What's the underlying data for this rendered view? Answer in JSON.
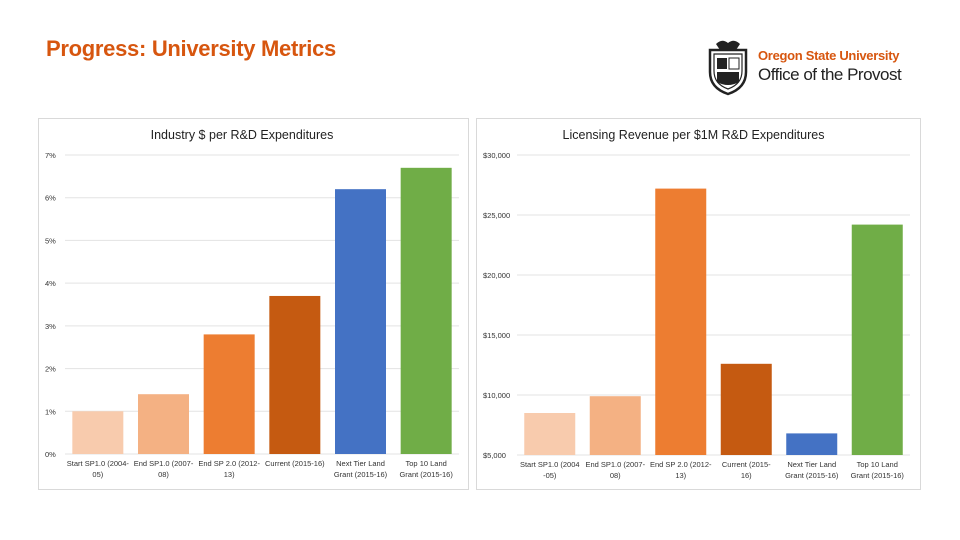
{
  "page": {
    "title": "Progress: University Metrics"
  },
  "logo": {
    "line1": "Oregon State University",
    "line2": "Office of the Provost",
    "icon": "osu-seal-icon"
  },
  "colors": {
    "title": "#d7560f",
    "bars": [
      "#f8cbad",
      "#f4b183",
      "#ed7d31",
      "#c55a11",
      "#4472c4",
      "#70ad47"
    ]
  },
  "chart_data": [
    {
      "type": "bar",
      "title": "Industry $ per R&D Expenditures",
      "categories": [
        [
          "Start SP1.0 (2004-",
          "05)"
        ],
        [
          "End SP1.0 (2007-",
          "08)"
        ],
        [
          "End SP 2.0 (2012-",
          "13)"
        ],
        [
          "Current (2015-16)",
          ""
        ],
        [
          "Next Tier Land",
          "Grant (2015-16)"
        ],
        [
          "Top 10 Land",
          "Grant (2015-16)"
        ]
      ],
      "values": [
        1.0,
        1.4,
        2.8,
        3.7,
        6.2,
        6.7
      ],
      "ylim": [
        0,
        7
      ],
      "yticks": [
        0,
        1,
        2,
        3,
        4,
        5,
        6,
        7
      ],
      "ytick_labels": [
        "0%",
        "1%",
        "2%",
        "3%",
        "4%",
        "5%",
        "6%",
        "7%"
      ],
      "grid": true
    },
    {
      "type": "bar",
      "title": "Licensing Revenue per $1M R&D Expenditures",
      "categories": [
        [
          "Start SP1.0 (2004",
          "-05)"
        ],
        [
          "End SP1.0 (2007-",
          "08)"
        ],
        [
          "End SP 2.0 (2012-",
          "13)"
        ],
        [
          "Current (2015-",
          "16)"
        ],
        [
          "Next Tier Land",
          "Grant (2015-16)"
        ],
        [
          "Top 10 Land",
          "Grant (2015-16)"
        ]
      ],
      "values": [
        8500,
        9900,
        27200,
        12600,
        6800,
        24200
      ],
      "ylim": [
        5000,
        30000
      ],
      "yticks": [
        5000,
        10000,
        15000,
        20000,
        25000,
        30000
      ],
      "ytick_labels": [
        "$5,000",
        "$10,000",
        "$15,000",
        "$20,000",
        "$25,000",
        "$30,000"
      ],
      "grid": true
    }
  ]
}
